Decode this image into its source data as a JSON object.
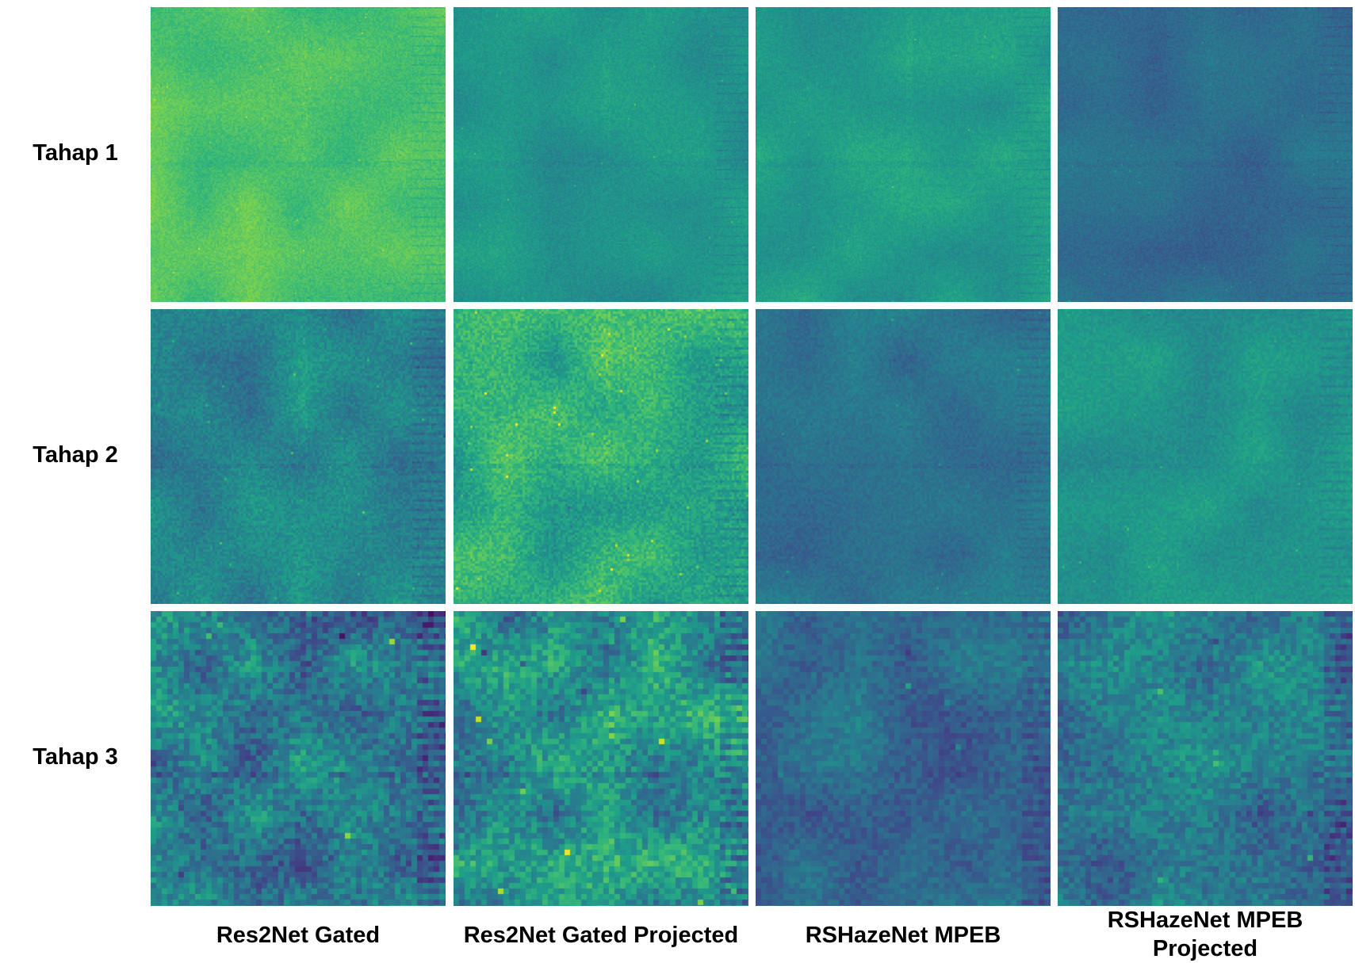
{
  "rows": [
    {
      "label": "Tahap 1"
    },
    {
      "label": "Tahap 2"
    },
    {
      "label": "Tahap 3"
    }
  ],
  "columns": [
    {
      "label": "Res2Net Gated"
    },
    {
      "label": "Res2Net Gated Projected"
    },
    {
      "label": "RSHazeNet MPEB"
    },
    {
      "label": "RSHazeNet MPEB Projected"
    }
  ],
  "colormap": "viridis"
}
